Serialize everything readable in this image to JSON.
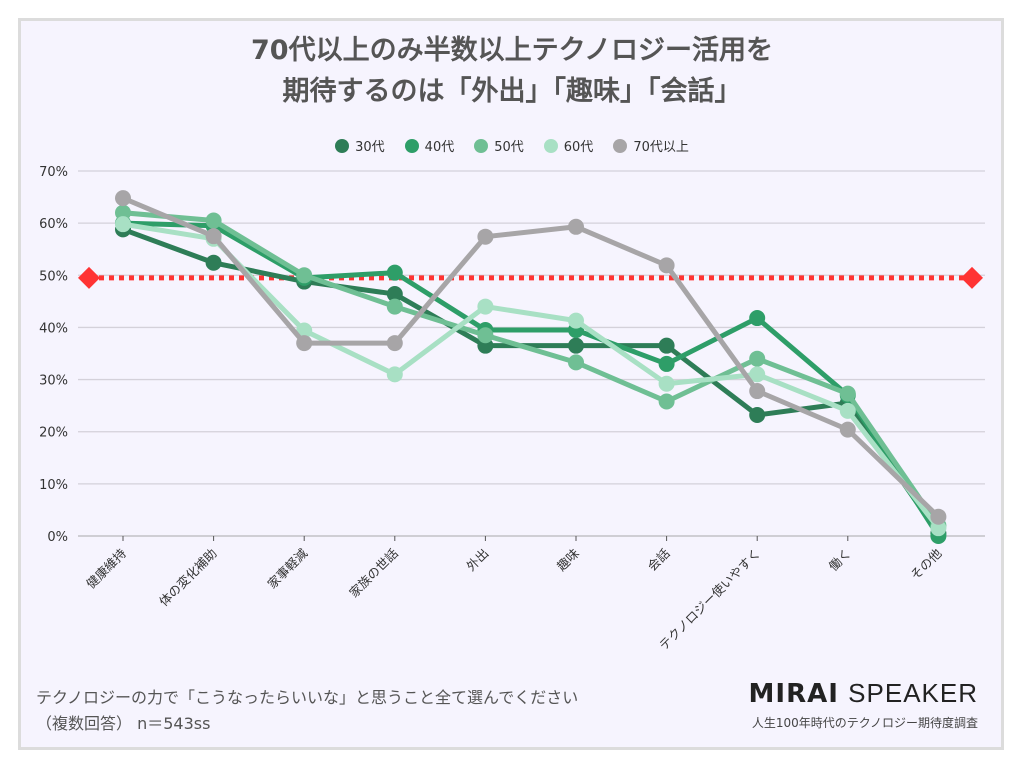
{
  "footer": {
    "question": "テクノロジーの力で「こうなったらいいな」と思うこと全て選んでください",
    "meta": "（複数回答） n＝543ss",
    "brand_bold": "MIRAI",
    "brand_light": "SPEAKER",
    "subtitle": "人生100年時代のテクノロジー期待度調査"
  },
  "chart_data": {
    "type": "line",
    "title_lines": [
      "70代以上のみ半数以上テクノロジー活用を",
      "期待するのは「外出」「趣味」「会話」"
    ],
    "categories": [
      "健康維持",
      "体の変化補助",
      "家事軽減",
      "家族の世話",
      "外出",
      "趣味",
      "会話",
      "テクノロジー使いやすく",
      "働く",
      "その他"
    ],
    "ylim": [
      0,
      70
    ],
    "yticks": [
      "0%",
      "10%",
      "20%",
      "30%",
      "40%",
      "50%",
      "60%",
      "70%"
    ],
    "grid": true,
    "legend_position": "top",
    "reference_line": {
      "value": 49.5,
      "color": "#ff3333",
      "style": "dotted"
    },
    "series": [
      {
        "name": "30代",
        "color": "#2e7d57",
        "values": [
          58.8,
          52.4,
          48.8,
          46.4,
          36.5,
          36.5,
          36.5,
          23.2,
          25.5,
          0.5
        ]
      },
      {
        "name": "40代",
        "color": "#2e9e68",
        "values": [
          60,
          59.5,
          49.5,
          50.5,
          39.5,
          39.5,
          33,
          41.8,
          27,
          0
        ]
      },
      {
        "name": "50代",
        "color": "#6fbf94",
        "values": [
          62,
          60.5,
          50,
          44,
          38.5,
          33.3,
          25.8,
          34,
          27.3,
          2
        ]
      },
      {
        "name": "60代",
        "color": "#a8e0c4",
        "values": [
          59.8,
          57,
          39.4,
          31,
          44,
          41.3,
          29.2,
          31,
          24,
          1.5
        ]
      },
      {
        "name": "70代以上",
        "color": "#a7a5a7",
        "values": [
          64.8,
          57.5,
          37,
          37,
          57.4,
          59.3,
          51.9,
          27.8,
          20.4,
          3.7
        ]
      }
    ]
  }
}
